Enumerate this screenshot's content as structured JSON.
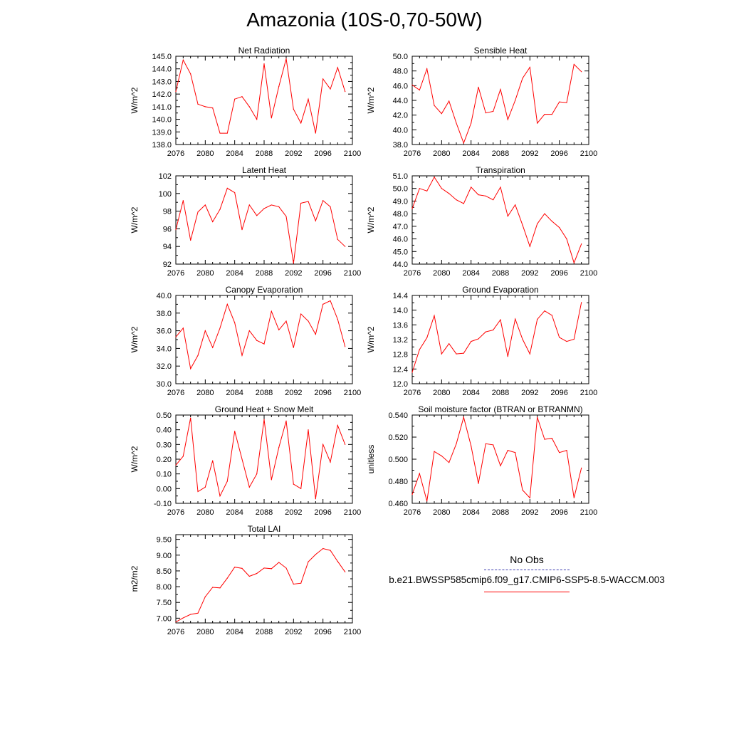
{
  "title": "Amazonia (10S-0,70-50W)",
  "colors": {
    "model_line": "#ff0000",
    "obs_line": "#3b3bb0",
    "axis": "#000000"
  },
  "legend": {
    "obs_label": "No Obs",
    "case_label": "b.e21.BWSSP585cmip6.f09_g17.CMIP6-SSP5-8.5-WACCM.003"
  },
  "chart_data": [
    {
      "type": "line",
      "title": "Net Radiation",
      "ylabel": "W/m^2",
      "xlim": [
        2076,
        2100
      ],
      "xticks": [
        "2076",
        "2080",
        "2084",
        "2088",
        "2092",
        "2096",
        "2100"
      ],
      "ylim": [
        138.0,
        145.0
      ],
      "yticks": [
        "138.0",
        "139.0",
        "140.0",
        "141.0",
        "142.0",
        "143.0",
        "144.0",
        "145.0"
      ],
      "x": [
        2076,
        2077,
        2078,
        2079,
        2080,
        2081,
        2082,
        2083,
        2084,
        2085,
        2086,
        2087,
        2088,
        2089,
        2090,
        2091,
        2092,
        2093,
        2094,
        2095,
        2096,
        2097,
        2098,
        2099
      ],
      "values": [
        142.2,
        144.7,
        143.6,
        141.2,
        141.0,
        140.9,
        138.9,
        138.9,
        141.6,
        141.8,
        141.0,
        140.0,
        144.4,
        140.1,
        142.6,
        144.8,
        140.8,
        139.7,
        141.6,
        138.9,
        143.2,
        142.4,
        144.1,
        142.2
      ]
    },
    {
      "type": "line",
      "title": "Sensible Heat",
      "ylabel": "W/m^2",
      "xlim": [
        2076,
        2100
      ],
      "xticks": [
        "2076",
        "2080",
        "2084",
        "2088",
        "2092",
        "2096",
        "2100"
      ],
      "ylim": [
        38.0,
        50.0
      ],
      "yticks": [
        "38.0",
        "40.0",
        "42.0",
        "44.0",
        "46.0",
        "48.0",
        "50.0"
      ],
      "x": [
        2076,
        2077,
        2078,
        2079,
        2080,
        2081,
        2082,
        2083,
        2084,
        2085,
        2086,
        2087,
        2088,
        2089,
        2090,
        2091,
        2092,
        2093,
        2094,
        2095,
        2096,
        2097,
        2098,
        2099
      ],
      "values": [
        46.1,
        45.4,
        48.3,
        43.3,
        42.2,
        43.9,
        40.9,
        38.2,
        40.9,
        45.8,
        42.3,
        42.5,
        45.5,
        41.4,
        44.0,
        47.0,
        48.5,
        40.9,
        42.1,
        42.1,
        43.8,
        43.7,
        48.9,
        47.9
      ]
    },
    {
      "type": "line",
      "title": "Latent Heat",
      "ylabel": "W/m^2",
      "xlim": [
        2076,
        2100
      ],
      "xticks": [
        "2076",
        "2080",
        "2084",
        "2088",
        "2092",
        "2096",
        "2100"
      ],
      "ylim": [
        92,
        102
      ],
      "yticks": [
        "92",
        "94",
        "96",
        "98",
        "100",
        "102"
      ],
      "x": [
        2076,
        2077,
        2078,
        2079,
        2080,
        2081,
        2082,
        2083,
        2084,
        2085,
        2086,
        2087,
        2088,
        2089,
        2090,
        2091,
        2092,
        2093,
        2094,
        2095,
        2096,
        2097,
        2098,
        2099
      ],
      "values": [
        95.9,
        99.2,
        94.7,
        97.9,
        98.7,
        96.8,
        98.2,
        100.6,
        100.1,
        95.9,
        98.7,
        97.5,
        98.3,
        98.7,
        98.5,
        97.4,
        92.1,
        98.9,
        99.1,
        96.9,
        99.2,
        98.5,
        94.8,
        94.0
      ]
    },
    {
      "type": "line",
      "title": "Transpiration",
      "ylabel": "W/m^2",
      "xlim": [
        2076,
        2100
      ],
      "xticks": [
        "2076",
        "2080",
        "2084",
        "2088",
        "2092",
        "2096",
        "2100"
      ],
      "ylim": [
        44.0,
        51.0
      ],
      "yticks": [
        "44.0",
        "45.0",
        "46.0",
        "47.0",
        "48.0",
        "49.0",
        "50.0",
        "51.0"
      ],
      "x": [
        2076,
        2077,
        2078,
        2079,
        2080,
        2081,
        2082,
        2083,
        2084,
        2085,
        2086,
        2087,
        2088,
        2089,
        2090,
        2091,
        2092,
        2093,
        2094,
        2095,
        2096,
        2097,
        2098,
        2099
      ],
      "values": [
        48.4,
        50.0,
        49.8,
        50.9,
        50.0,
        49.6,
        49.1,
        48.8,
        50.1,
        49.5,
        49.4,
        49.1,
        50.1,
        47.8,
        48.7,
        47.1,
        45.4,
        47.2,
        48.0,
        47.4,
        46.9,
        46.0,
        44.1,
        45.6
      ]
    },
    {
      "type": "line",
      "title": "Canopy Evaporation",
      "ylabel": "W/m^2",
      "xlim": [
        2076,
        2100
      ],
      "xticks": [
        "2076",
        "2080",
        "2084",
        "2088",
        "2092",
        "2096",
        "2100"
      ],
      "ylim": [
        30.0,
        40.0
      ],
      "yticks": [
        "30.0",
        "32.0",
        "34.0",
        "36.0",
        "38.0",
        "40.0"
      ],
      "x": [
        2076,
        2077,
        2078,
        2079,
        2080,
        2081,
        2082,
        2083,
        2084,
        2085,
        2086,
        2087,
        2088,
        2089,
        2090,
        2091,
        2092,
        2093,
        2094,
        2095,
        2096,
        2097,
        2098,
        2099
      ],
      "values": [
        35.3,
        36.3,
        31.7,
        33.2,
        36.0,
        34.1,
        36.3,
        39.0,
        36.9,
        33.2,
        36.0,
        34.9,
        34.5,
        38.2,
        36.1,
        37.1,
        34.1,
        37.9,
        37.1,
        35.6,
        39.0,
        39.4,
        37.3,
        34.2
      ]
    },
    {
      "type": "line",
      "title": "Ground Evaporation",
      "ylabel": "W/m^2",
      "xlim": [
        2076,
        2100
      ],
      "xticks": [
        "2076",
        "2080",
        "2084",
        "2088",
        "2092",
        "2096",
        "2100"
      ],
      "ylim": [
        12.0,
        14.4
      ],
      "yticks": [
        "12.0",
        "12.4",
        "12.8",
        "13.2",
        "13.6",
        "14.0",
        "14.4"
      ],
      "x": [
        2076,
        2077,
        2078,
        2079,
        2080,
        2081,
        2082,
        2083,
        2084,
        2085,
        2086,
        2087,
        2088,
        2089,
        2090,
        2091,
        2092,
        2093,
        2094,
        2095,
        2096,
        2097,
        2098,
        2099
      ],
      "values": [
        12.31,
        12.93,
        13.25,
        13.85,
        12.81,
        13.09,
        12.81,
        12.83,
        13.15,
        13.22,
        13.41,
        13.46,
        13.74,
        12.74,
        13.76,
        13.21,
        12.81,
        13.75,
        13.98,
        13.86,
        13.26,
        13.15,
        13.21,
        14.21
      ]
    },
    {
      "type": "line",
      "title": "Ground Heat + Snow Melt",
      "ylabel": "W/m^2",
      "xlim": [
        2076,
        2100
      ],
      "xticks": [
        "2076",
        "2080",
        "2084",
        "2088",
        "2092",
        "2096",
        "2100"
      ],
      "ylim": [
        -0.1,
        0.5
      ],
      "yticks": [
        "-0.10",
        "0.00",
        "0.10",
        "0.20",
        "0.30",
        "0.40",
        "0.50"
      ],
      "x": [
        2076,
        2077,
        2078,
        2079,
        2080,
        2081,
        2082,
        2083,
        2084,
        2085,
        2086,
        2087,
        2088,
        2089,
        2090,
        2091,
        2092,
        2093,
        2094,
        2095,
        2096,
        2097,
        2098,
        2099
      ],
      "values": [
        0.16,
        0.22,
        0.48,
        -0.02,
        0.01,
        0.19,
        -0.05,
        0.05,
        0.39,
        0.2,
        0.01,
        0.1,
        0.47,
        0.06,
        0.28,
        0.46,
        0.03,
        0.0,
        0.4,
        -0.07,
        0.3,
        0.18,
        0.43,
        0.3
      ]
    },
    {
      "type": "line",
      "title": "Soil moisture factor (BTRAN or BTRANMN)",
      "ylabel": "unitless",
      "xlim": [
        2076,
        2100
      ],
      "xticks": [
        "2076",
        "2080",
        "2084",
        "2088",
        "2092",
        "2096",
        "2100"
      ],
      "ylim": [
        0.46,
        0.54
      ],
      "yticks": [
        "0.460",
        "0.480",
        "0.500",
        "0.520",
        "0.540"
      ],
      "x": [
        2076,
        2077,
        2078,
        2079,
        2080,
        2081,
        2082,
        2083,
        2084,
        2085,
        2086,
        2087,
        2088,
        2089,
        2090,
        2091,
        2092,
        2093,
        2094,
        2095,
        2096,
        2097,
        2098,
        2099
      ],
      "values": [
        0.468,
        0.487,
        0.462,
        0.507,
        0.503,
        0.497,
        0.514,
        0.538,
        0.512,
        0.478,
        0.514,
        0.513,
        0.494,
        0.508,
        0.506,
        0.472,
        0.465,
        0.538,
        0.518,
        0.519,
        0.506,
        0.508,
        0.465,
        0.492
      ]
    },
    {
      "type": "line",
      "title": "Total LAI",
      "ylabel": "m2/m2",
      "xlim": [
        2076,
        2100
      ],
      "xticks": [
        "2076",
        "2080",
        "2084",
        "2088",
        "2092",
        "2096",
        "2100"
      ],
      "ylim": [
        6.85,
        9.65
      ],
      "yticks": [
        "7.00",
        "7.50",
        "8.00",
        "8.50",
        "9.00",
        "9.50"
      ],
      "x": [
        2076,
        2077,
        2078,
        2079,
        2080,
        2081,
        2082,
        2083,
        2084,
        2085,
        2086,
        2087,
        2088,
        2089,
        2090,
        2091,
        2092,
        2093,
        2094,
        2095,
        2096,
        2097,
        2098,
        2099
      ],
      "values": [
        6.88,
        7.01,
        7.12,
        7.16,
        7.68,
        7.98,
        7.96,
        8.27,
        8.62,
        8.58,
        8.33,
        8.42,
        8.59,
        8.57,
        8.77,
        8.59,
        8.08,
        8.11,
        8.79,
        9.02,
        9.21,
        9.15,
        8.8,
        8.47
      ]
    }
  ]
}
